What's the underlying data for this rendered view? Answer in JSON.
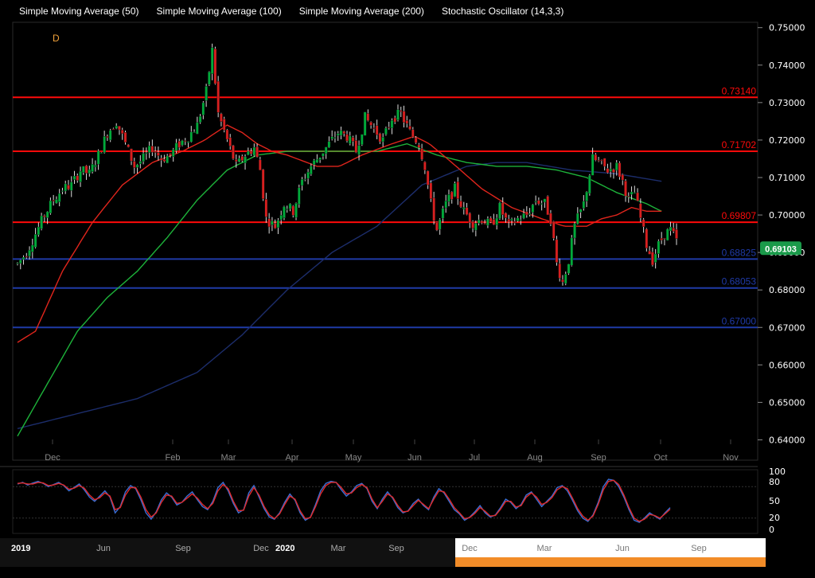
{
  "legend": [
    "Simple Moving Average (50)",
    "Simple Moving Average (100)",
    "Simple Moving Average (200)",
    "Stochastic Oscillator (14,3,3)"
  ],
  "watermark": "D",
  "colors": {
    "background": "#000000",
    "candle_up": "#00aa3a",
    "candle_down": "#d81f1f",
    "sma50": "#e0251c",
    "sma100": "#1db33a",
    "sma200": "#1c2d6b",
    "resistance": "#ff0a0a",
    "support": "#1f3aa6",
    "stoch_k": "#3a6fd6",
    "stoch_d": "#e02a2a",
    "price_badge": "#1a9a4a",
    "navigator_highlight": "#f28c28"
  },
  "chart_data": [
    {
      "type": "candlestick",
      "title": "",
      "y_axis": {
        "range": [
          0.635,
          0.751
        ],
        "ticks": [
          "0.75000",
          "0.74000",
          "0.73000",
          "0.72000",
          "0.71000",
          "0.70000",
          "0.69000",
          "0.68000",
          "0.67000",
          "0.66000",
          "0.65000",
          "0.64000"
        ],
        "position": "right"
      },
      "x_axis": {
        "ticks": [
          "Dec",
          "Feb",
          "Mar",
          "Apr",
          "May",
          "Jun",
          "Jul",
          "Aug",
          "Sep",
          "Oct",
          "Nov"
        ]
      },
      "last_price": "0.69103",
      "horizontal_levels": [
        {
          "value": 0.7314,
          "label": "0.73140",
          "role": "resistance"
        },
        {
          "value": 0.71702,
          "label": "0.71702",
          "role": "resistance"
        },
        {
          "value": 0.69807,
          "label": "0.69807",
          "role": "resistance"
        },
        {
          "value": 0.68825,
          "label": "0.68825",
          "role": "support"
        },
        {
          "value": 0.68053,
          "label": "0.68053",
          "role": "support"
        },
        {
          "value": 0.67,
          "label": "0.67000",
          "role": "support"
        }
      ],
      "price_anchors": [
        [
          0,
          0.687
        ],
        [
          6,
          0.69
        ],
        [
          12,
          0.695
        ],
        [
          18,
          0.7
        ],
        [
          24,
          0.704
        ],
        [
          30,
          0.707
        ],
        [
          36,
          0.708
        ],
        [
          42,
          0.712
        ],
        [
          48,
          0.711
        ],
        [
          54,
          0.716
        ],
        [
          60,
          0.722
        ],
        [
          66,
          0.725
        ],
        [
          72,
          0.719
        ],
        [
          78,
          0.713
        ],
        [
          84,
          0.715
        ],
        [
          90,
          0.718
        ],
        [
          96,
          0.715
        ],
        [
          102,
          0.716
        ],
        [
          108,
          0.719
        ],
        [
          114,
          0.721
        ],
        [
          120,
          0.724
        ],
        [
          126,
          0.733
        ],
        [
          130,
          0.744
        ],
        [
          134,
          0.727
        ],
        [
          140,
          0.72
        ],
        [
          146,
          0.713
        ],
        [
          152,
          0.716
        ],
        [
          158,
          0.718
        ],
        [
          162,
          0.712
        ],
        [
          166,
          0.699
        ],
        [
          172,
          0.697
        ],
        [
          178,
          0.703
        ],
        [
          184,
          0.701
        ],
        [
          190,
          0.709
        ],
        [
          196,
          0.713
        ],
        [
          202,
          0.716
        ],
        [
          208,
          0.719
        ],
        [
          214,
          0.722
        ],
        [
          220,
          0.721
        ],
        [
          226,
          0.717
        ],
        [
          232,
          0.726
        ],
        [
          238,
          0.723
        ],
        [
          244,
          0.72
        ],
        [
          250,
          0.726
        ],
        [
          256,
          0.727
        ],
        [
          262,
          0.722
        ],
        [
          268,
          0.719
        ],
        [
          272,
          0.713
        ],
        [
          276,
          0.703
        ],
        [
          280,
          0.696
        ],
        [
          286,
          0.703
        ],
        [
          292,
          0.707
        ],
        [
          298,
          0.701
        ],
        [
          304,
          0.698
        ],
        [
          310,
          0.699
        ],
        [
          316,
          0.697
        ],
        [
          322,
          0.702
        ],
        [
          328,
          0.697
        ],
        [
          334,
          0.699
        ],
        [
          340,
          0.7
        ],
        [
          346,
          0.704
        ],
        [
          352,
          0.703
        ],
        [
          356,
          0.699
        ],
        [
          360,
          0.687
        ],
        [
          364,
          0.682
        ],
        [
          368,
          0.688
        ],
        [
          372,
          0.697
        ],
        [
          378,
          0.703
        ],
        [
          384,
          0.715
        ],
        [
          388,
          0.714
        ],
        [
          394,
          0.712
        ],
        [
          400,
          0.713
        ],
        [
          404,
          0.709
        ],
        [
          408,
          0.704
        ],
        [
          412,
          0.706
        ],
        [
          416,
          0.699
        ],
        [
          420,
          0.692
        ],
        [
          424,
          0.688
        ],
        [
          428,
          0.692
        ],
        [
          432,
          0.695
        ],
        [
          436,
          0.696
        ],
        [
          440,
          0.693
        ]
      ],
      "sma50": [
        [
          0,
          0.666
        ],
        [
          12,
          0.669
        ],
        [
          30,
          0.685
        ],
        [
          50,
          0.698
        ],
        [
          70,
          0.708
        ],
        [
          90,
          0.714
        ],
        [
          110,
          0.717
        ],
        [
          125,
          0.72
        ],
        [
          140,
          0.724
        ],
        [
          150,
          0.722
        ],
        [
          160,
          0.719
        ],
        [
          170,
          0.717
        ],
        [
          180,
          0.716
        ],
        [
          200,
          0.713
        ],
        [
          215,
          0.713
        ],
        [
          230,
          0.716
        ],
        [
          250,
          0.719
        ],
        [
          265,
          0.721
        ],
        [
          275,
          0.719
        ],
        [
          290,
          0.714
        ],
        [
          310,
          0.707
        ],
        [
          330,
          0.702
        ],
        [
          350,
          0.699
        ],
        [
          365,
          0.697
        ],
        [
          380,
          0.697
        ],
        [
          390,
          0.699
        ],
        [
          400,
          0.7
        ],
        [
          410,
          0.702
        ],
        [
          420,
          0.701
        ],
        [
          430,
          0.701
        ]
      ],
      "sma100": [
        [
          0,
          0.641
        ],
        [
          20,
          0.655
        ],
        [
          40,
          0.669
        ],
        [
          60,
          0.678
        ],
        [
          80,
          0.685
        ],
        [
          100,
          0.694
        ],
        [
          120,
          0.704
        ],
        [
          140,
          0.712
        ],
        [
          160,
          0.716
        ],
        [
          180,
          0.717
        ],
        [
          200,
          0.717
        ],
        [
          220,
          0.717
        ],
        [
          240,
          0.717
        ],
        [
          260,
          0.719
        ],
        [
          280,
          0.716
        ],
        [
          300,
          0.714
        ],
        [
          320,
          0.713
        ],
        [
          340,
          0.713
        ],
        [
          360,
          0.712
        ],
        [
          380,
          0.71
        ],
        [
          400,
          0.706
        ],
        [
          420,
          0.703
        ],
        [
          430,
          0.701
        ]
      ],
      "sma200": [
        [
          0,
          0.643
        ],
        [
          40,
          0.647
        ],
        [
          80,
          0.651
        ],
        [
          120,
          0.658
        ],
        [
          150,
          0.668
        ],
        [
          180,
          0.68
        ],
        [
          210,
          0.69
        ],
        [
          240,
          0.697
        ],
        [
          270,
          0.708
        ],
        [
          300,
          0.713
        ],
        [
          320,
          0.714
        ],
        [
          340,
          0.714
        ],
        [
          370,
          0.712
        ],
        [
          400,
          0.711
        ],
        [
          430,
          0.709
        ]
      ]
    },
    {
      "type": "line",
      "title": "",
      "y_axis": {
        "range": [
          0,
          100
        ],
        "ticks": [
          "100",
          "80",
          "50",
          "20",
          "0"
        ],
        "guides": [
          80,
          20
        ]
      },
      "series": [
        {
          "values": [
            85,
            88,
            83,
            87,
            90,
            86,
            80,
            84,
            88,
            82,
            72,
            78,
            85,
            74,
            60,
            52,
            62,
            72,
            60,
            30,
            42,
            70,
            82,
            76,
            55,
            30,
            18,
            32,
            55,
            68,
            60,
            45,
            50,
            62,
            70,
            55,
            42,
            36,
            52,
            78,
            88,
            72,
            48,
            30,
            36,
            68,
            82,
            60,
            38,
            22,
            18,
            30,
            50,
            66,
            54,
            30,
            16,
            22,
            46,
            72,
            86,
            90,
            88,
            74,
            62,
            70,
            82,
            86,
            76,
            52,
            38,
            56,
            70,
            58,
            40,
            30,
            34,
            48,
            56,
            44,
            36,
            60,
            76,
            68,
            52,
            36,
            28,
            16,
            22,
            32,
            44,
            30,
            22,
            26,
            40,
            56,
            50,
            38,
            46,
            64,
            70,
            56,
            42,
            52,
            62,
            78,
            82,
            72,
            54,
            34,
            20,
            14,
            26,
            50,
            80,
            94,
            92,
            80,
            60,
            36,
            16,
            12,
            20,
            30,
            24,
            18,
            30,
            40
          ]
        },
        {
          "values": [
            86,
            87,
            85,
            85,
            88,
            87,
            82,
            83,
            86,
            83,
            75,
            77,
            82,
            77,
            64,
            55,
            59,
            68,
            62,
            36,
            40,
            64,
            78,
            78,
            60,
            36,
            22,
            30,
            50,
            64,
            62,
            48,
            50,
            58,
            66,
            58,
            46,
            38,
            48,
            72,
            84,
            76,
            52,
            34,
            35,
            62,
            78,
            64,
            42,
            26,
            19,
            28,
            46,
            62,
            56,
            34,
            19,
            21,
            42,
            66,
            82,
            88,
            88,
            78,
            66,
            68,
            78,
            84,
            78,
            56,
            40,
            52,
            66,
            60,
            44,
            32,
            33,
            44,
            54,
            46,
            38,
            56,
            72,
            70,
            56,
            40,
            30,
            19,
            21,
            29,
            40,
            33,
            24,
            25,
            37,
            52,
            52,
            41,
            44,
            60,
            68,
            60,
            46,
            50,
            59,
            74,
            80,
            76,
            58,
            38,
            24,
            16,
            24,
            46,
            74,
            90,
            92,
            84,
            64,
            40,
            20,
            14,
            18,
            27,
            25,
            20,
            28,
            37
          ]
        }
      ]
    }
  ],
  "navigator": {
    "year_2019": "2019",
    "year_2020": "2020",
    "ticks_a": [
      [
        "Jun",
        130
      ],
      [
        "Sep",
        230
      ],
      [
        "Dec",
        328
      ]
    ],
    "ticks_b": [
      [
        "Mar",
        425
      ],
      [
        "Sep",
        498
      ]
    ],
    "ticks_c": [
      [
        "Dec",
        590
      ],
      [
        "Mar",
        684
      ],
      [
        "Jun",
        782
      ],
      [
        "Sep",
        878
      ]
    ]
  }
}
